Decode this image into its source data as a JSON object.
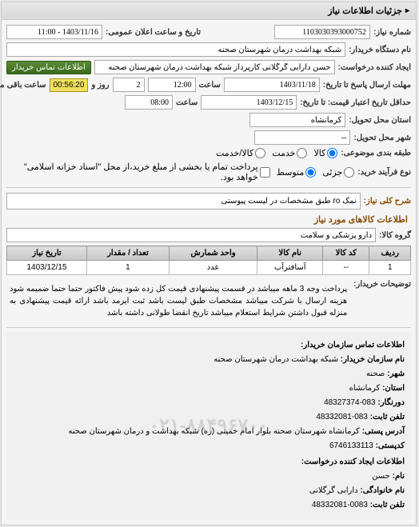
{
  "panel_title": "جزئیات اطلاعات نیاز",
  "fields": {
    "need_number_label": "شماره نیاز:",
    "need_number": "1103030393000752",
    "announce_date_label": "تاریخ و ساعت اعلان عمومی:",
    "announce_date": "1403/11/16 - 11:00",
    "device_name_label": "نام دستگاه خریدار:",
    "device_name": "شبکه بهداشت درمان شهرستان صحنه",
    "request_creator_label": "ایجاد کننده درخواست:",
    "request_creator": "حسن دارابی گرگلانی کارپرداز شبکه بهداشت درمان شهرستان صحنه",
    "contact_btn": "اطلاعات تماس خریدار",
    "deadline_send_label": "مهلت ارسال پاسخ تا تاریخ:",
    "deadline_send_date": "1403/11/18",
    "deadline_send_time_label": "ساعت",
    "deadline_send_time": "12:00",
    "day_label": "روز و",
    "day_value": "2",
    "remaining_time": "00:56:20",
    "remaining_label": "ساعت باقی مانده",
    "price_deadline_label": "حداقل تاریخ اعتبار قیمت: تا تاریخ:",
    "price_deadline_date": "1403/12/15",
    "price_deadline_time_label": "ساعت",
    "price_deadline_time": "08:00",
    "province_label": "استان محل تحویل:",
    "province": "کرمانشاه",
    "city_label": "شهر محل تحویل:",
    "city": "--",
    "category_label": "طبقه بندی موضوعی:",
    "cat_goods": "کالا",
    "cat_service": "خدمت",
    "cat_both": "کالا/خدمت",
    "process_type_label": "نوع فرآیند خرید:",
    "proc_small": "جزئی",
    "proc_medium": "متوسط",
    "proc_note": "پرداخت تمام یا بخشی از مبلغ خرید،از محل \"اسناد خزانه اسلامی\" خواهد بود.",
    "need_title_label": "شرح کلی نیاز:",
    "need_title": "نمک ro طبق مشخصات در لیست پیوستی",
    "goods_section_title": "اطلاعات کالاهای مورد نیاز",
    "goods_group_label": "گروه کالا:",
    "goods_group": "دارو پزشکی و سلامت"
  },
  "table": {
    "headers": [
      "ردیف",
      "کد کالا",
      "نام کالا",
      "واحد شمارش",
      "تعداد / مقدار",
      "تاریخ نیاز"
    ],
    "rows": [
      [
        "1",
        "--",
        "آسافترآب",
        "عدد",
        "1",
        "1403/12/15"
      ]
    ]
  },
  "description": {
    "label": "توضیحات خریدار:",
    "text": "پرداخت وجه 3 ماهه میباشد در قسمت پیشنهادی قیمت کل زده شود پیش فاکتور حتما حتما ضمیمه شود هزینه ارسال با شرکت میباشد مشخصات طبق لیست باشد ثبت ایرمد باشد ارائه قیمت پیشنهادی به منزله قبول داشتن شرایط استعلام میباشد تاریخ انقضا طولانی داشته باشد"
  },
  "contact_section": {
    "title": "اطلاعات تماس سازمان خریدار:",
    "org_label": "نام سازمان خریدار:",
    "org": "شبکه بهداشت درمان شهرستان صحنه",
    "city_label": "شهر:",
    "city": "صحنه",
    "province_label": "استان:",
    "province": "کرمانشاه",
    "fax_label": "دورنگار:",
    "fax": "083-48327374",
    "phone_label": "تلفن ثابت:",
    "phone": "083-48332081",
    "address_label": "آدرس پستی:",
    "address": "کرمانشاه شهرستان صحنه بلوار امام خمینی (ره) شبکه بهداشت و درمان شهرستان صحنه",
    "postal_label": "کدپستی:",
    "postal": "6746133113",
    "creator_title": "اطلاعات ایجاد کننده درخواست:",
    "name_label": "نام:",
    "name": "حسن",
    "family_label": "نام خانوادگی:",
    "family": "دارابی گرگلانی",
    "creator_phone_label": "تلفن ثابت:",
    "creator_phone": "0083-48332081",
    "watermark": "۰۲۱-۸۸۴۹۶۷۰۰"
  },
  "colors": {
    "panel_bg": "#f5f5f5",
    "header_bg": "#e0e0e0",
    "btn_green": "#3a6a1a",
    "yellow": "#f0e060",
    "section_title": "#8a4a00"
  }
}
